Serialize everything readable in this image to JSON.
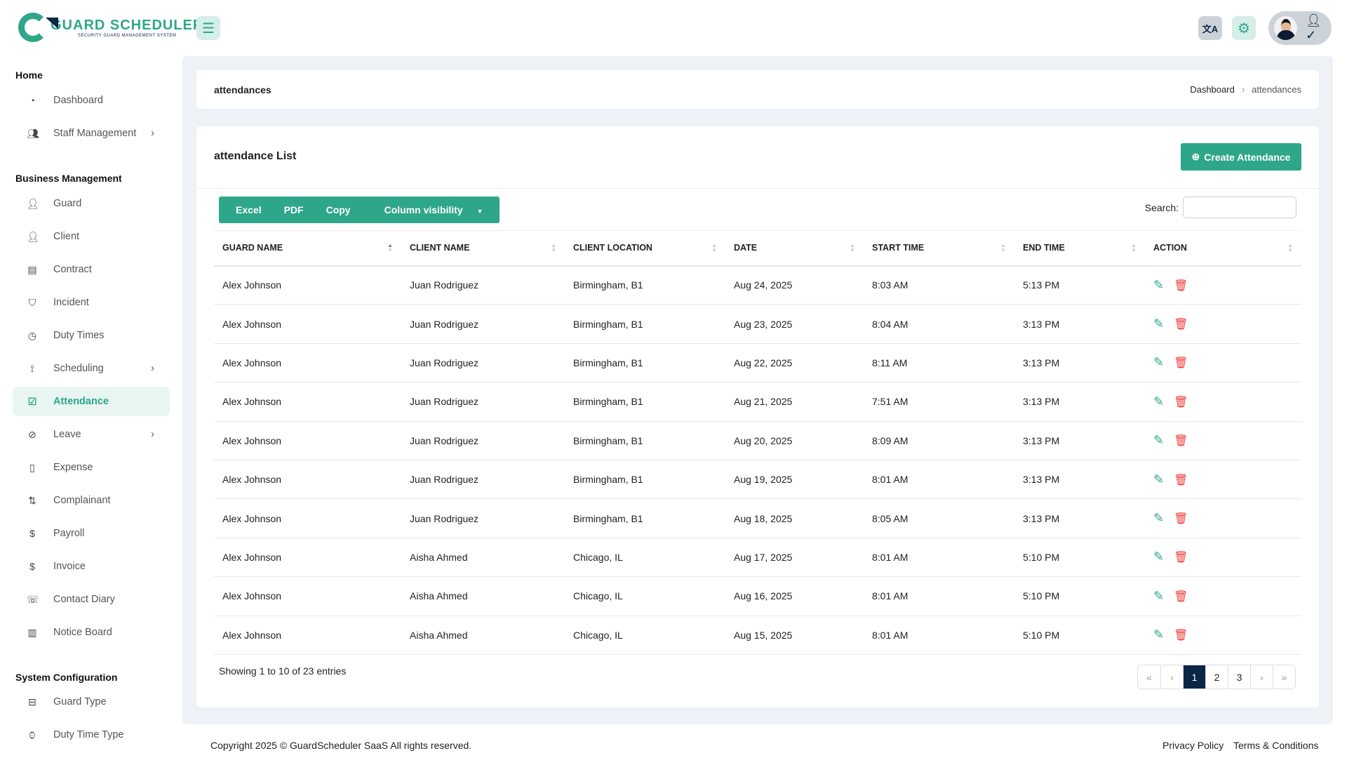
{
  "brand": {
    "name": "GUARD SCHEDULER",
    "tagline": "SECURITY GUARD MANAGEMENT SYSTEM"
  },
  "topbar": {
    "icons": [
      "menu-icon",
      "translate-icon",
      "gear-icon",
      "user-check-icon"
    ]
  },
  "sidebar": {
    "sections": [
      {
        "title": "Home",
        "items": [
          {
            "label": "Dashboard",
            "icon": "gauge-icon"
          },
          {
            "label": "Staff Management",
            "icon": "users-icon",
            "chevron": true
          }
        ]
      },
      {
        "title": "Business Management",
        "items": [
          {
            "label": "Guard",
            "icon": "user-check-icon"
          },
          {
            "label": "Client",
            "icon": "user-plus-icon"
          },
          {
            "label": "Contract",
            "icon": "file-icon"
          },
          {
            "label": "Incident",
            "icon": "shield-icon"
          },
          {
            "label": "Duty Times",
            "icon": "clock-icon"
          },
          {
            "label": "Scheduling",
            "icon": "route-icon",
            "chevron": true
          },
          {
            "label": "Attendance",
            "icon": "checkbox-icon",
            "active": true
          },
          {
            "label": "Leave",
            "icon": "ban-icon",
            "chevron": true
          },
          {
            "label": "Expense",
            "icon": "document-icon"
          },
          {
            "label": "Complainant",
            "icon": "exchange-icon"
          },
          {
            "label": "Payroll",
            "icon": "dollar-icon"
          },
          {
            "label": "Invoice",
            "icon": "dollar-file-icon"
          },
          {
            "label": "Contact Diary",
            "icon": "phone-icon"
          },
          {
            "label": "Notice Board",
            "icon": "notebook-icon"
          }
        ]
      },
      {
        "title": "System Configuration",
        "items": [
          {
            "label": "Guard Type",
            "icon": "layout-icon"
          },
          {
            "label": "Duty Time Type",
            "icon": "watch-icon"
          }
        ]
      }
    ]
  },
  "header": {
    "title": "attendances",
    "breadcrumb": [
      "Dashboard",
      "attendances"
    ]
  },
  "main": {
    "title": "attendance List",
    "create_label": "Create Attendance",
    "export_buttons": [
      "Excel",
      "PDF",
      "Copy",
      "Column visibility"
    ],
    "search_label": "Search:",
    "search_value": "",
    "columns": [
      "GUARD NAME",
      "CLIENT NAME",
      "CLIENT LOCATION",
      "DATE",
      "START TIME",
      "END TIME",
      "ACTION"
    ],
    "rows": [
      [
        "Alex Johnson",
        "Juan Rodriguez",
        "Birmingham, B1",
        "Aug 24, 2025",
        "8:03 AM",
        "5:13 PM"
      ],
      [
        "Alex Johnson",
        "Juan Rodriguez",
        "Birmingham, B1",
        "Aug 23, 2025",
        "8:04 AM",
        "3:13 PM"
      ],
      [
        "Alex Johnson",
        "Juan Rodriguez",
        "Birmingham, B1",
        "Aug 22, 2025",
        "8:11 AM",
        "3:13 PM"
      ],
      [
        "Alex Johnson",
        "Juan Rodriguez",
        "Birmingham, B1",
        "Aug 21, 2025",
        "7:51 AM",
        "3:13 PM"
      ],
      [
        "Alex Johnson",
        "Juan Rodriguez",
        "Birmingham, B1",
        "Aug 20, 2025",
        "8:09 AM",
        "3:13 PM"
      ],
      [
        "Alex Johnson",
        "Juan Rodriguez",
        "Birmingham, B1",
        "Aug 19, 2025",
        "8:01 AM",
        "3:13 PM"
      ],
      [
        "Alex Johnson",
        "Juan Rodriguez",
        "Birmingham, B1",
        "Aug 18, 2025",
        "8:05 AM",
        "3:13 PM"
      ],
      [
        "Alex Johnson",
        "Aisha Ahmed",
        "Chicago, IL",
        "Aug 17, 2025",
        "8:01 AM",
        "5:10 PM"
      ],
      [
        "Alex Johnson",
        "Aisha Ahmed",
        "Chicago, IL",
        "Aug 16, 2025",
        "8:01 AM",
        "5:10 PM"
      ],
      [
        "Alex Johnson",
        "Aisha Ahmed",
        "Chicago, IL",
        "Aug 15, 2025",
        "8:01 AM",
        "5:10 PM"
      ]
    ],
    "showing": "Showing 1 to 10 of 23 entries",
    "pagination": {
      "items": [
        "«",
        "‹",
        "1",
        "2",
        "3",
        "›",
        "»"
      ],
      "current": "1"
    }
  },
  "footer": {
    "copyright": "Copyright 2025 © GuardScheduler SaaS All rights reserved.",
    "links": [
      "Privacy Policy",
      "Terms & Conditions"
    ]
  },
  "colors": {
    "accent": "#2ea68a",
    "navy": "#0b2545",
    "danger": "#ef3b36",
    "background": "#eef1f5"
  }
}
